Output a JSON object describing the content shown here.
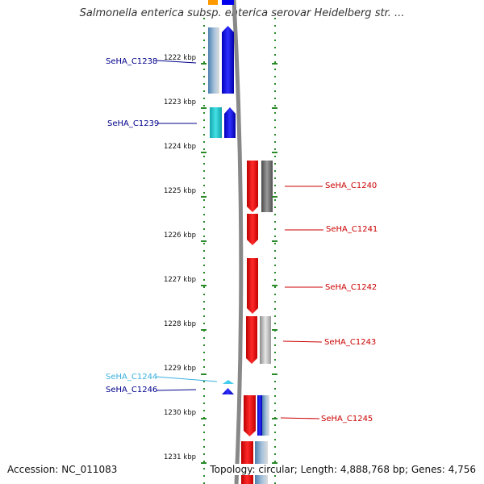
{
  "header": {
    "title": "Salmonella enterica subsp. enterica serovar Heidelberg str. ..."
  },
  "footer": {
    "accession": "Accession: NC_011083",
    "topology": "Topology: circular; Length: 4,888,768 bp; Genes: 4,756"
  },
  "colors": {
    "forward_blue": "#0000ee",
    "forward_cyan": "#22c8d0",
    "forward_lightblue": "#44bbdd",
    "reverse_red": "#ee0000",
    "ruler_green": "#2a8a2a",
    "backbone_gray": "#888888",
    "label_blue": "#00008b",
    "label_lightblue": "#3ab0dd",
    "label_red": "#cc0000"
  },
  "ruler": {
    "unit": "kbp",
    "ticks": [
      {
        "kbp": 1222,
        "label": "1222 kbp"
      },
      {
        "kbp": 1223,
        "label": "1223 kbp"
      },
      {
        "kbp": 1224,
        "label": "1224 kbp"
      },
      {
        "kbp": 1225,
        "label": "1225 kbp"
      },
      {
        "kbp": 1226,
        "label": "1226 kbp"
      },
      {
        "kbp": 1227,
        "label": "1227 kbp"
      },
      {
        "kbp": 1228,
        "label": "1228 kbp"
      },
      {
        "kbp": 1229,
        "label": "1229 kbp"
      },
      {
        "kbp": 1230,
        "label": "1230 kbp"
      },
      {
        "kbp": 1231,
        "label": "1231 kbp"
      }
    ]
  },
  "genes": [
    {
      "id": "SeHA_C1238",
      "label": "SeHA_C1238",
      "strand": "forward",
      "start_kbp": 1221.28,
      "end_kbp": 1222.58,
      "color": "#0000ee",
      "label_color": "#00008b"
    },
    {
      "id": "SeHA_C1239",
      "label": "SeHA_C1239",
      "strand": "forward",
      "start_kbp": 1223.0,
      "end_kbp": 1223.68,
      "color": "#0000ee",
      "label_color": "#00008b"
    },
    {
      "id": "SeHA_C1240",
      "label": "SeHA_C1240",
      "strand": "reverse",
      "start_kbp": 1224.2,
      "end_kbp": 1225.38,
      "color": "#ee0000",
      "label_color": "#cc0000"
    },
    {
      "id": "SeHA_C1241",
      "label": "SeHA_C1241",
      "strand": "reverse",
      "start_kbp": 1225.4,
      "end_kbp": 1226.1,
      "color": "#ee0000",
      "label_color": "#cc0000"
    },
    {
      "id": "SeHA_C1242",
      "label": "SeHA_C1242",
      "strand": "reverse",
      "start_kbp": 1226.4,
      "end_kbp": 1227.7,
      "color": "#ee0000",
      "label_color": "#cc0000"
    },
    {
      "id": "SeHA_C1243",
      "label": "SeHA_C1243",
      "strand": "reverse",
      "start_kbp": 1227.72,
      "end_kbp": 1228.84,
      "color": "#ee0000",
      "label_color": "#cc0000"
    },
    {
      "id": "SeHA_C1244",
      "label": "SeHA_C1244",
      "strand": "forward",
      "start_kbp": 1229.12,
      "end_kbp": 1229.22,
      "color": "#44ccee",
      "label_color": "#3ab0dd"
    },
    {
      "id": "SeHA_C1246",
      "label": "SeHA_C1246",
      "strand": "forward",
      "start_kbp": 1229.3,
      "end_kbp": 1229.44,
      "color": "#0000ee",
      "label_color": "#00008b"
    },
    {
      "id": "SeHA_C1245",
      "label": "SeHA_C1245",
      "strand": "reverse",
      "start_kbp": 1229.72,
      "end_kbp": 1230.7,
      "color": "#ee0000",
      "label_color": "#cc0000"
    }
  ]
}
